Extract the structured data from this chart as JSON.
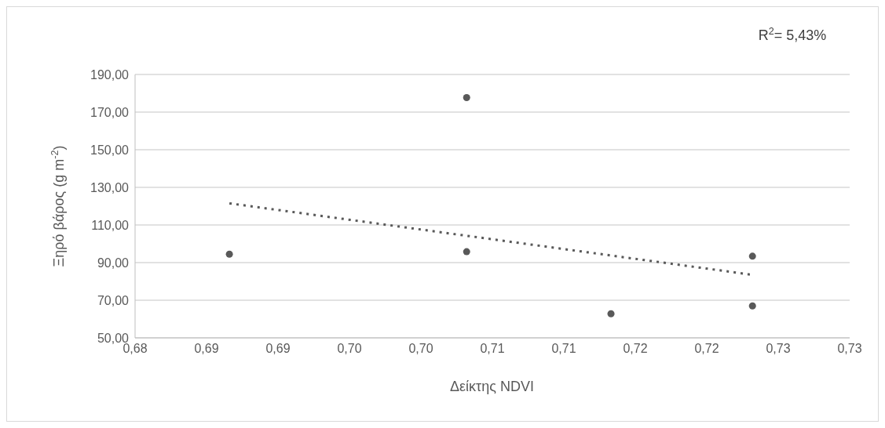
{
  "chart_data": {
    "type": "scatter",
    "xlabel": "Δείκτης NDVI",
    "ylabel": "Ξηρό βάρος (g m$^{-2}$)",
    "annotations": [
      "R$^{2}$= 5,43%"
    ],
    "xlim": [
      0.68,
      0.73
    ],
    "xticks": [
      {
        "value": 0.68,
        "label": "0,68"
      },
      {
        "value": 0.685,
        "label": "0,69"
      },
      {
        "value": 0.69,
        "label": "0,69"
      },
      {
        "value": 0.695,
        "label": "0,70"
      },
      {
        "value": 0.7,
        "label": "0,70"
      },
      {
        "value": 0.705,
        "label": "0,71"
      },
      {
        "value": 0.71,
        "label": "0,71"
      },
      {
        "value": 0.715,
        "label": "0,72"
      },
      {
        "value": 0.72,
        "label": "0,72"
      },
      {
        "value": 0.725,
        "label": "0,73"
      },
      {
        "value": 0.73,
        "label": "0,73"
      }
    ],
    "ylim": [
      50,
      190
    ],
    "yticks": [
      {
        "value": 50,
        "label": "50,00"
      },
      {
        "value": 70,
        "label": "70,00"
      },
      {
        "value": 90,
        "label": "90,00"
      },
      {
        "value": 110,
        "label": "110,00"
      },
      {
        "value": 130,
        "label": "130,00"
      },
      {
        "value": 150,
        "label": "150,00"
      },
      {
        "value": 170,
        "label": "170,00"
      },
      {
        "value": 190,
        "label": "190,00"
      }
    ],
    "grid": "y",
    "series": [
      {
        "color": "#595959",
        "marker": "circle",
        "x": [
          0.6866,
          0.7032,
          0.7032,
          0.7133,
          0.7232,
          0.7232
        ],
        "values": [
          94.5,
          177.7,
          95.8,
          62.8,
          93.4,
          67.0
        ]
      },
      {
        "type": "line",
        "color": "#595959",
        "line_style": "dotted",
        "marker": "none",
        "x": [
          0.6866,
          0.7232
        ],
        "values": [
          121.5,
          83.5
        ]
      }
    ]
  }
}
